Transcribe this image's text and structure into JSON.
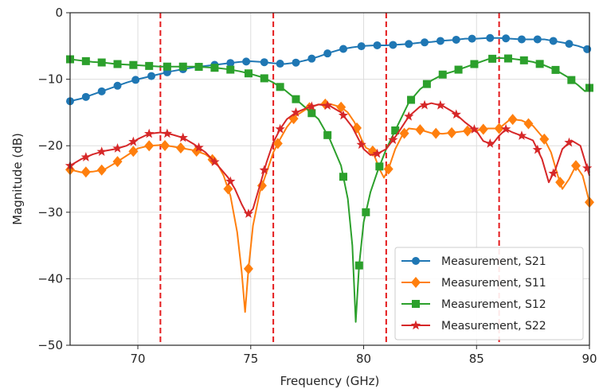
{
  "chart_data": {
    "type": "line",
    "title": "",
    "xlabel": "Frequency (GHz)",
    "ylabel": "Magnitude (dB)",
    "xlim": [
      67,
      90
    ],
    "ylim": [
      -50,
      0
    ],
    "xticks": [
      70,
      75,
      80,
      85,
      90
    ],
    "yticks": [
      0,
      -10,
      -20,
      -30,
      -40,
      -50
    ],
    "grid": true,
    "legend_position": "bottom-right",
    "vlines": {
      "x": [
        71,
        76,
        81,
        86
      ],
      "color": "#e41a1c",
      "style": "dashed"
    },
    "series": [
      {
        "name": "Measurement, S21",
        "color": "#1f77b4",
        "marker": "circle",
        "x": [
          67,
          67.5,
          68,
          68.5,
          69,
          69.5,
          70,
          70.5,
          71,
          71.5,
          72,
          72.5,
          73,
          73.5,
          74,
          74.5,
          75,
          75.5,
          76,
          76.5,
          77,
          77.5,
          78,
          78.5,
          79,
          79.5,
          80,
          80.5,
          81,
          81.5,
          82,
          82.5,
          83,
          83.5,
          84,
          84.5,
          85,
          85.5,
          86,
          86.5,
          87,
          87.5,
          88,
          88.5,
          89,
          89.5,
          90
        ],
        "y": [
          -13.3,
          -12.9,
          -12.3,
          -11.7,
          -11.1,
          -10.5,
          -10.0,
          -9.6,
          -9.2,
          -8.8,
          -8.5,
          -8.2,
          -8.0,
          -7.8,
          -7.6,
          -7.4,
          -7.3,
          -7.4,
          -7.6,
          -7.7,
          -7.5,
          -7.1,
          -6.6,
          -6.0,
          -5.5,
          -5.2,
          -5.0,
          -4.9,
          -4.9,
          -4.8,
          -4.7,
          -4.5,
          -4.4,
          -4.2,
          -4.1,
          -3.9,
          -3.9,
          -3.8,
          -3.8,
          -3.9,
          -4.0,
          -4.0,
          -4.0,
          -4.3,
          -4.6,
          -5.0,
          -5.6
        ],
        "marker_x": [
          67,
          67.7,
          68.4,
          69.1,
          69.9,
          70.6,
          71.3,
          72.0,
          72.7,
          73.4,
          74.1,
          74.8,
          75.6,
          76.3,
          77.0,
          77.7,
          78.4,
          79.1,
          79.9,
          80.6,
          81.3,
          82.0,
          82.7,
          83.4,
          84.1,
          84.8,
          85.6,
          86.3,
          87.0,
          87.7,
          88.4,
          89.1,
          89.9
        ]
      },
      {
        "name": "Measurement, S11",
        "color": "#ff7f0e",
        "marker": "diamond",
        "x": [
          67,
          67.5,
          68,
          68.5,
          69,
          69.5,
          70,
          70.5,
          71,
          71.5,
          72,
          72.5,
          73,
          73.5,
          73.8,
          74.1,
          74.4,
          74.6,
          74.75,
          74.9,
          75.1,
          75.4,
          75.7,
          76.0,
          76.3,
          76.6,
          77,
          77.5,
          78,
          78.5,
          79,
          79.3,
          79.6,
          79.9,
          80.1,
          80.4,
          80.7,
          80.9,
          81.1,
          81.4,
          81.7,
          82,
          82.5,
          83,
          83.5,
          84,
          84.5,
          85,
          85.5,
          86,
          86.5,
          87,
          87.5,
          88,
          88.3,
          88.6,
          88.8,
          89.1,
          89.4,
          89.7,
          90
        ],
        "y": [
          -23.6,
          -24.0,
          -23.9,
          -23.6,
          -22.6,
          -21.5,
          -20.4,
          -20.0,
          -19.9,
          -20.1,
          -20.4,
          -20.7,
          -21.3,
          -22.6,
          -24.5,
          -27.5,
          -33.0,
          -39.0,
          -45.0,
          -38.5,
          -32.0,
          -27.0,
          -24.0,
          -21.0,
          -19.0,
          -17.2,
          -15.5,
          -14.4,
          -13.8,
          -13.7,
          -14.2,
          -15.0,
          -16.5,
          -19.0,
          -20.3,
          -20.8,
          -23.5,
          -24.8,
          -23.5,
          -20.5,
          -18.5,
          -17.4,
          -17.6,
          -18.1,
          -18.2,
          -18.0,
          -17.8,
          -17.7,
          -17.4,
          -17.4,
          -16.0,
          -16.2,
          -17.0,
          -19.0,
          -21.0,
          -24.5,
          -26.5,
          -25.0,
          -23.0,
          -24.5,
          -28.5
        ],
        "marker_x": [
          67.0,
          67.7,
          68.4,
          69.1,
          69.8,
          70.5,
          71.2,
          71.9,
          72.6,
          73.3,
          74.0,
          74.9,
          75.5,
          76.2,
          76.9,
          77.6,
          78.3,
          79.0,
          79.7,
          80.4,
          81.1,
          81.8,
          82.5,
          83.2,
          83.9,
          84.6,
          85.3,
          86.0,
          86.6,
          87.3,
          88.0,
          88.7,
          89.4,
          90.0
        ]
      },
      {
        "name": "Measurement, S12",
        "color": "#2ca02c",
        "marker": "square",
        "x": [
          67,
          67.5,
          68,
          68.5,
          69,
          69.5,
          70,
          70.5,
          71,
          71.5,
          72,
          72.5,
          73,
          73.5,
          74,
          74.5,
          75,
          75.5,
          76,
          76.5,
          77,
          77.5,
          78,
          78.5,
          79,
          79.3,
          79.5,
          79.65,
          79.8,
          80.0,
          80.3,
          80.6,
          81,
          81.5,
          82,
          82.5,
          83,
          83.5,
          84,
          84.5,
          85,
          85.5,
          86,
          86.5,
          87,
          87.5,
          88,
          88.5,
          89,
          89.5,
          89.8,
          90
        ],
        "y": [
          -7.0,
          -7.2,
          -7.4,
          -7.5,
          -7.7,
          -7.8,
          -7.9,
          -8.0,
          -8.1,
          -8.1,
          -8.1,
          -8.1,
          -8.2,
          -8.3,
          -8.5,
          -8.8,
          -9.2,
          -9.7,
          -10.5,
          -11.6,
          -13.0,
          -14.5,
          -16.0,
          -19.0,
          -23.0,
          -28.0,
          -35.0,
          -46.5,
          -38.0,
          -31.5,
          -27.0,
          -24.0,
          -20.5,
          -17.0,
          -13.5,
          -11.5,
          -10.2,
          -9.3,
          -8.8,
          -8.2,
          -7.6,
          -7.0,
          -6.8,
          -6.9,
          -7.1,
          -7.4,
          -7.9,
          -8.6,
          -9.6,
          -10.9,
          -11.8,
          -11.3
        ],
        "marker_x": [
          67.0,
          67.7,
          68.4,
          69.1,
          69.8,
          70.5,
          71.3,
          72.0,
          72.7,
          73.4,
          74.1,
          74.9,
          75.6,
          76.3,
          77.0,
          77.7,
          78.4,
          79.1,
          79.8,
          80.1,
          80.7,
          81.4,
          82.1,
          82.8,
          83.5,
          84.2,
          84.9,
          85.7,
          86.4,
          87.1,
          87.8,
          88.5,
          89.2,
          90.0
        ]
      },
      {
        "name": "Measurement, S22",
        "color": "#d62728",
        "marker": "star",
        "x": [
          67,
          67.5,
          68,
          68.5,
          69,
          69.5,
          70,
          70.5,
          71,
          71.5,
          72,
          72.5,
          73,
          73.5,
          74,
          74.3,
          74.6,
          74.85,
          75.1,
          75.4,
          75.7,
          76.0,
          76.3,
          76.6,
          77,
          77.5,
          78,
          78.5,
          79,
          79.5,
          80,
          80.3,
          80.6,
          81,
          81.5,
          82,
          82.5,
          83,
          83.5,
          84,
          84.5,
          85,
          85.3,
          85.7,
          86,
          86.3,
          86.6,
          87,
          87.5,
          87.9,
          88.2,
          88.5,
          88.8,
          89.2,
          89.6,
          90
        ],
        "y": [
          -23.0,
          -22.0,
          -21.3,
          -20.8,
          -20.5,
          -20.0,
          -19.0,
          -18.2,
          -18.0,
          -18.3,
          -18.8,
          -19.8,
          -21.0,
          -22.8,
          -24.8,
          -26.5,
          -28.8,
          -30.4,
          -29.5,
          -26.0,
          -22.5,
          -19.5,
          -17.5,
          -16.0,
          -15.0,
          -14.3,
          -13.8,
          -14.0,
          -15.0,
          -17.2,
          -20.5,
          -21.4,
          -21.2,
          -20.5,
          -18.2,
          -15.6,
          -14.1,
          -13.6,
          -14.0,
          -15.0,
          -16.5,
          -17.8,
          -19.3,
          -19.8,
          -18.5,
          -17.5,
          -18.0,
          -18.5,
          -19.2,
          -22.0,
          -25.5,
          -23.5,
          -20.5,
          -19.2,
          -20.0,
          -24.5
        ],
        "marker_x": [
          67.0,
          67.7,
          68.4,
          69.1,
          69.8,
          70.5,
          71.3,
          72.0,
          72.7,
          73.4,
          74.1,
          74.9,
          75.6,
          76.3,
          77.0,
          77.7,
          78.4,
          79.1,
          79.9,
          80.6,
          81.3,
          82.0,
          82.7,
          83.4,
          84.1,
          84.9,
          85.6,
          86.3,
          87.0,
          87.7,
          88.4,
          89.1,
          89.9
        ]
      }
    ]
  }
}
